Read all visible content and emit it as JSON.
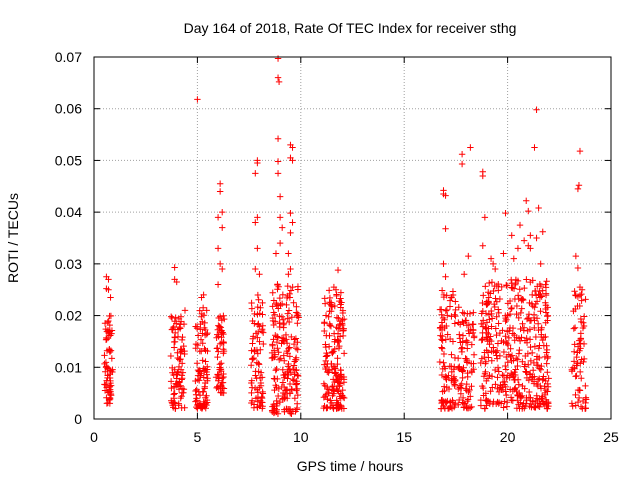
{
  "chart_data": {
    "type": "scatter",
    "title": "Day 164 of 2018, Rate Of TEC Index for receiver sthg",
    "xlabel": "GPS time / hours",
    "ylabel": "ROTI / TECUs",
    "xlim": [
      0,
      25
    ],
    "ylim": [
      0,
      0.07
    ],
    "x_ticks": [
      0,
      5,
      10,
      15,
      20,
      25
    ],
    "x_tick_labels": [
      "0",
      "5",
      "10",
      "15",
      "20",
      "25"
    ],
    "y_ticks": [
      0,
      0.01,
      0.02,
      0.03,
      0.04,
      0.05,
      0.06,
      0.07
    ],
    "y_tick_labels": [
      "0",
      "0.01",
      "0.02",
      "0.03",
      "0.04",
      "0.05",
      "0.06",
      "0.07"
    ],
    "grid": true,
    "marker": "+",
    "color": "#ff0000",
    "clusters": [
      {
        "x_start": 0.5,
        "x_end": 0.9,
        "y_min": 0.003,
        "y_max": 0.02,
        "count": 70
      },
      {
        "x_start": 3.7,
        "x_end": 4.4,
        "y_min": 0.002,
        "y_max": 0.02,
        "count": 90
      },
      {
        "x_start": 4.9,
        "x_end": 5.5,
        "y_min": 0.002,
        "y_max": 0.022,
        "count": 90
      },
      {
        "x_start": 5.9,
        "x_end": 6.3,
        "y_min": 0.005,
        "y_max": 0.02,
        "count": 60
      },
      {
        "x_start": 7.6,
        "x_end": 8.2,
        "y_min": 0.002,
        "y_max": 0.025,
        "count": 80
      },
      {
        "x_start": 8.6,
        "x_end": 9.9,
        "y_min": 0.001,
        "y_max": 0.027,
        "count": 190
      },
      {
        "x_start": 11.1,
        "x_end": 12.1,
        "y_min": 0.002,
        "y_max": 0.025,
        "count": 170
      },
      {
        "x_start": 16.7,
        "x_end": 17.5,
        "y_min": 0.002,
        "y_max": 0.025,
        "count": 100
      },
      {
        "x_start": 17.6,
        "x_end": 18.4,
        "y_min": 0.002,
        "y_max": 0.022,
        "count": 90
      },
      {
        "x_start": 18.7,
        "x_end": 22.0,
        "y_min": 0.002,
        "y_max": 0.027,
        "count": 420
      },
      {
        "x_start": 23.1,
        "x_end": 23.8,
        "y_min": 0.002,
        "y_max": 0.025,
        "count": 70
      }
    ],
    "points": [
      {
        "x": 0.6,
        "y": 0.0275
      },
      {
        "x": 0.7,
        "y": 0.027
      },
      {
        "x": 0.6,
        "y": 0.0252
      },
      {
        "x": 0.7,
        "y": 0.025
      },
      {
        "x": 0.8,
        "y": 0.0235
      },
      {
        "x": 3.9,
        "y": 0.0293
      },
      {
        "x": 3.9,
        "y": 0.027
      },
      {
        "x": 4.0,
        "y": 0.0265
      },
      {
        "x": 4.4,
        "y": 0.021
      },
      {
        "x": 5.0,
        "y": 0.0618
      },
      {
        "x": 5.3,
        "y": 0.024
      },
      {
        "x": 5.2,
        "y": 0.0235
      },
      {
        "x": 6.1,
        "y": 0.0455
      },
      {
        "x": 6.1,
        "y": 0.044
      },
      {
        "x": 6.2,
        "y": 0.04
      },
      {
        "x": 6.0,
        "y": 0.039
      },
      {
        "x": 6.2,
        "y": 0.037
      },
      {
        "x": 6.0,
        "y": 0.033
      },
      {
        "x": 6.1,
        "y": 0.03
      },
      {
        "x": 6.2,
        "y": 0.029
      },
      {
        "x": 6.0,
        "y": 0.026
      },
      {
        "x": 7.9,
        "y": 0.05
      },
      {
        "x": 7.9,
        "y": 0.0495
      },
      {
        "x": 7.8,
        "y": 0.0475
      },
      {
        "x": 7.9,
        "y": 0.039
      },
      {
        "x": 7.8,
        "y": 0.038
      },
      {
        "x": 7.9,
        "y": 0.033
      },
      {
        "x": 7.8,
        "y": 0.029
      },
      {
        "x": 8.0,
        "y": 0.028
      },
      {
        "x": 8.9,
        "y": 0.0697
      },
      {
        "x": 8.9,
        "y": 0.066
      },
      {
        "x": 8.95,
        "y": 0.0652
      },
      {
        "x": 8.9,
        "y": 0.0542
      },
      {
        "x": 8.9,
        "y": 0.0498
      },
      {
        "x": 8.9,
        "y": 0.0475
      },
      {
        "x": 9.0,
        "y": 0.043
      },
      {
        "x": 9.0,
        "y": 0.039
      },
      {
        "x": 9.1,
        "y": 0.037
      },
      {
        "x": 9.0,
        "y": 0.034
      },
      {
        "x": 8.8,
        "y": 0.032
      },
      {
        "x": 9.5,
        "y": 0.053
      },
      {
        "x": 9.6,
        "y": 0.0525
      },
      {
        "x": 9.5,
        "y": 0.0505
      },
      {
        "x": 9.6,
        "y": 0.05
      },
      {
        "x": 9.5,
        "y": 0.0398
      },
      {
        "x": 9.6,
        "y": 0.038
      },
      {
        "x": 9.5,
        "y": 0.036
      },
      {
        "x": 9.4,
        "y": 0.032
      },
      {
        "x": 9.5,
        "y": 0.029
      },
      {
        "x": 9.4,
        "y": 0.028
      },
      {
        "x": 11.8,
        "y": 0.0288
      },
      {
        "x": 11.6,
        "y": 0.0255
      },
      {
        "x": 11.7,
        "y": 0.025
      },
      {
        "x": 16.9,
        "y": 0.0442
      },
      {
        "x": 16.9,
        "y": 0.0435
      },
      {
        "x": 17.0,
        "y": 0.0432
      },
      {
        "x": 17.0,
        "y": 0.0368
      },
      {
        "x": 16.9,
        "y": 0.03
      },
      {
        "x": 17.0,
        "y": 0.0275
      },
      {
        "x": 17.8,
        "y": 0.0512
      },
      {
        "x": 17.8,
        "y": 0.0493
      },
      {
        "x": 18.2,
        "y": 0.0525
      },
      {
        "x": 18.1,
        "y": 0.0315
      },
      {
        "x": 17.9,
        "y": 0.028
      },
      {
        "x": 18.8,
        "y": 0.0478
      },
      {
        "x": 18.8,
        "y": 0.047
      },
      {
        "x": 18.9,
        "y": 0.039
      },
      {
        "x": 18.8,
        "y": 0.0335
      },
      {
        "x": 19.2,
        "y": 0.031
      },
      {
        "x": 19.3,
        "y": 0.03
      },
      {
        "x": 19.4,
        "y": 0.029
      },
      {
        "x": 19.9,
        "y": 0.0398
      },
      {
        "x": 20.2,
        "y": 0.0355
      },
      {
        "x": 19.8,
        "y": 0.032
      },
      {
        "x": 20.3,
        "y": 0.031
      },
      {
        "x": 20.6,
        "y": 0.0375
      },
      {
        "x": 20.5,
        "y": 0.033
      },
      {
        "x": 20.9,
        "y": 0.0422
      },
      {
        "x": 21.0,
        "y": 0.0402
      },
      {
        "x": 21.1,
        "y": 0.0355
      },
      {
        "x": 20.8,
        "y": 0.0345
      },
      {
        "x": 21.0,
        "y": 0.0335
      },
      {
        "x": 21.1,
        "y": 0.033
      },
      {
        "x": 21.4,
        "y": 0.0598
      },
      {
        "x": 21.3,
        "y": 0.0525
      },
      {
        "x": 21.5,
        "y": 0.0408
      },
      {
        "x": 21.4,
        "y": 0.035
      },
      {
        "x": 21.7,
        "y": 0.0362
      },
      {
        "x": 21.6,
        "y": 0.03
      },
      {
        "x": 23.5,
        "y": 0.0518
      },
      {
        "x": 23.45,
        "y": 0.0452
      },
      {
        "x": 23.4,
        "y": 0.0445
      },
      {
        "x": 23.3,
        "y": 0.0315
      },
      {
        "x": 23.4,
        "y": 0.0292
      },
      {
        "x": 23.5,
        "y": 0.0255
      },
      {
        "x": 23.6,
        "y": 0.025
      }
    ]
  }
}
